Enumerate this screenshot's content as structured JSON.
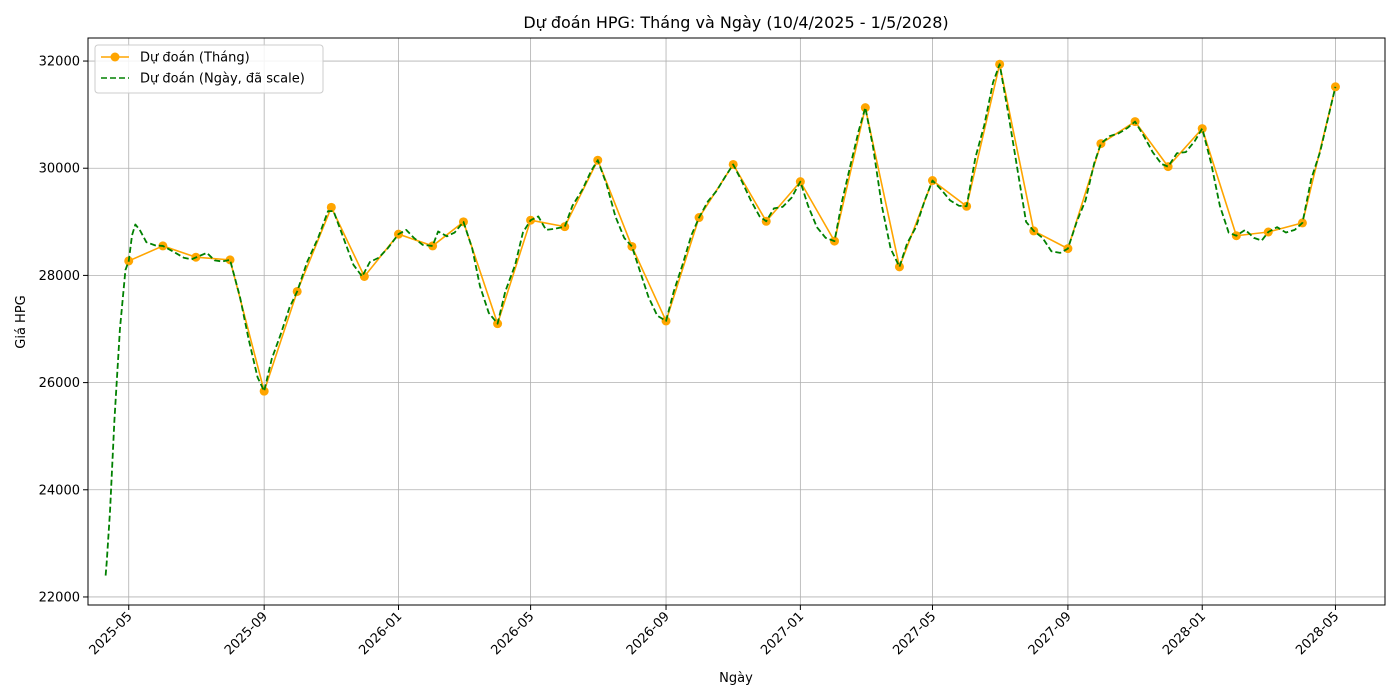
{
  "chart_data": {
    "type": "line",
    "title": "Dự đoán HPG: Tháng và Ngày (10/4/2025 - 1/5/2028)",
    "xlabel": "Ngày",
    "ylabel": "Giá HPG",
    "xlim": [
      "2025-03-25",
      "2028-06-15"
    ],
    "ylim": [
      21850,
      32430
    ],
    "x_ticks": [
      "2025-05-01",
      "2025-09-01",
      "2026-01-01",
      "2026-05-01",
      "2026-09-01",
      "2027-01-01",
      "2027-05-01",
      "2027-09-01",
      "2028-01-01",
      "2028-05-01"
    ],
    "x_tick_labels": [
      "2025-05",
      "2025-09",
      "2026-01",
      "2026-05",
      "2026-09",
      "2027-01",
      "2027-05",
      "2027-09",
      "2028-01",
      "2028-05"
    ],
    "y_ticks": [
      22000,
      24000,
      26000,
      28000,
      30000,
      32000
    ],
    "y_tick_labels": [
      "22000",
      "24000",
      "26000",
      "28000",
      "30000",
      "32000"
    ],
    "grid": true,
    "legend_position": "top-left",
    "series": [
      {
        "name": "Dự đoán (Tháng)",
        "style": "solid-with-markers",
        "color": "#ffa500",
        "points": [
          [
            "2025-05-01",
            28270
          ],
          [
            "2025-06-01",
            28550
          ],
          [
            "2025-07-01",
            28340
          ],
          [
            "2025-08-01",
            28290
          ],
          [
            "2025-09-01",
            25840
          ],
          [
            "2025-10-01",
            27700
          ],
          [
            "2025-11-01",
            29270
          ],
          [
            "2025-12-01",
            27980
          ],
          [
            "2026-01-01",
            28770
          ],
          [
            "2026-02-01",
            28550
          ],
          [
            "2026-03-01",
            29000
          ],
          [
            "2026-04-01",
            27100
          ],
          [
            "2026-05-01",
            29030
          ],
          [
            "2026-06-01",
            28910
          ],
          [
            "2026-07-01",
            30150
          ],
          [
            "2026-08-01",
            28540
          ],
          [
            "2026-09-01",
            27150
          ],
          [
            "2026-10-01",
            29080
          ],
          [
            "2026-11-01",
            30070
          ],
          [
            "2026-12-01",
            29010
          ],
          [
            "2027-01-01",
            29750
          ],
          [
            "2027-02-01",
            28640
          ],
          [
            "2027-03-01",
            31130
          ],
          [
            "2027-04-01",
            28160
          ],
          [
            "2027-05-01",
            29770
          ],
          [
            "2027-06-01",
            29290
          ],
          [
            "2027-07-01",
            31940
          ],
          [
            "2027-08-01",
            28830
          ],
          [
            "2027-09-01",
            28500
          ],
          [
            "2027-10-01",
            30460
          ],
          [
            "2027-11-01",
            30870
          ],
          [
            "2027-12-01",
            30030
          ],
          [
            "2028-01-01",
            30740
          ],
          [
            "2028-02-01",
            28740
          ],
          [
            "2028-03-01",
            28810
          ],
          [
            "2028-04-01",
            28980
          ],
          [
            "2028-05-01",
            31520
          ]
        ]
      },
      {
        "name": "Dự đoán (Ngày, đã scale)",
        "style": "dashed",
        "color": "#008000",
        "points": [
          [
            "2025-04-10",
            22400
          ],
          [
            "2025-04-11",
            22650
          ],
          [
            "2025-04-14",
            23600
          ],
          [
            "2025-04-18",
            25300
          ],
          [
            "2025-04-23",
            27000
          ],
          [
            "2025-04-28",
            28100
          ],
          [
            "2025-05-01",
            28270
          ],
          [
            "2025-05-04",
            28750
          ],
          [
            "2025-05-07",
            28950
          ],
          [
            "2025-05-11",
            28850
          ],
          [
            "2025-05-17",
            28620
          ],
          [
            "2025-05-25",
            28560
          ],
          [
            "2025-06-01",
            28550
          ],
          [
            "2025-06-10",
            28450
          ],
          [
            "2025-06-20",
            28330
          ],
          [
            "2025-06-27",
            28300
          ],
          [
            "2025-07-05",
            28370
          ],
          [
            "2025-07-11",
            28420
          ],
          [
            "2025-07-18",
            28280
          ],
          [
            "2025-07-25",
            28260
          ],
          [
            "2025-08-01",
            28290
          ],
          [
            "2025-08-10",
            27600
          ],
          [
            "2025-08-18",
            26800
          ],
          [
            "2025-08-26",
            26100
          ],
          [
            "2025-09-01",
            25840
          ],
          [
            "2025-09-08",
            26450
          ],
          [
            "2025-09-16",
            26900
          ],
          [
            "2025-09-24",
            27400
          ],
          [
            "2025-10-01",
            27700
          ],
          [
            "2025-10-10",
            28250
          ],
          [
            "2025-10-20",
            28700
          ],
          [
            "2025-10-29",
            29200
          ],
          [
            "2025-11-03",
            29200
          ],
          [
            "2025-11-12",
            28700
          ],
          [
            "2025-11-21",
            28200
          ],
          [
            "2025-11-29",
            27980
          ],
          [
            "2025-12-06",
            28250
          ],
          [
            "2025-12-14",
            28330
          ],
          [
            "2025-12-22",
            28500
          ],
          [
            "2026-01-01",
            28770
          ],
          [
            "2026-01-08",
            28850
          ],
          [
            "2026-01-15",
            28700
          ],
          [
            "2026-01-23",
            28570
          ],
          [
            "2026-02-01",
            28550
          ],
          [
            "2026-02-06",
            28820
          ],
          [
            "2026-02-14",
            28730
          ],
          [
            "2026-02-21",
            28800
          ],
          [
            "2026-03-01",
            29000
          ],
          [
            "2026-03-09",
            28500
          ],
          [
            "2026-03-16",
            27800
          ],
          [
            "2026-03-24",
            27300
          ],
          [
            "2026-04-01",
            27100
          ],
          [
            "2026-04-08",
            27700
          ],
          [
            "2026-04-17",
            28200
          ],
          [
            "2026-04-24",
            28800
          ],
          [
            "2026-05-01",
            29030
          ],
          [
            "2026-05-08",
            29100
          ],
          [
            "2026-05-15",
            28850
          ],
          [
            "2026-05-23",
            28870
          ],
          [
            "2026-06-01",
            28910
          ],
          [
            "2026-06-08",
            29300
          ],
          [
            "2026-06-17",
            29600
          ],
          [
            "2026-06-25",
            29950
          ],
          [
            "2026-07-01",
            30150
          ],
          [
            "2026-07-09",
            29700
          ],
          [
            "2026-07-17",
            29100
          ],
          [
            "2026-07-25",
            28700
          ],
          [
            "2026-08-01",
            28540
          ],
          [
            "2026-08-08",
            28100
          ],
          [
            "2026-08-16",
            27600
          ],
          [
            "2026-08-24",
            27250
          ],
          [
            "2026-09-01",
            27150
          ],
          [
            "2026-09-08",
            27700
          ],
          [
            "2026-09-16",
            28200
          ],
          [
            "2026-09-24",
            28750
          ],
          [
            "2026-10-01",
            29080
          ],
          [
            "2026-10-09",
            29380
          ],
          [
            "2026-10-17",
            29580
          ],
          [
            "2026-10-25",
            29850
          ],
          [
            "2026-11-01",
            30070
          ],
          [
            "2026-11-09",
            29750
          ],
          [
            "2026-11-17",
            29400
          ],
          [
            "2026-11-25",
            29100
          ],
          [
            "2026-12-01",
            29010
          ],
          [
            "2026-12-08",
            29250
          ],
          [
            "2026-12-16",
            29280
          ],
          [
            "2026-12-24",
            29450
          ],
          [
            "2027-01-01",
            29750
          ],
          [
            "2027-01-08",
            29300
          ],
          [
            "2027-01-16",
            28900
          ],
          [
            "2027-01-24",
            28700
          ],
          [
            "2027-02-01",
            28640
          ],
          [
            "2027-02-08",
            29400
          ],
          [
            "2027-02-16",
            30100
          ],
          [
            "2027-02-23",
            30700
          ],
          [
            "2027-03-01",
            31130
          ],
          [
            "2027-03-08",
            30400
          ],
          [
            "2027-03-16",
            29300
          ],
          [
            "2027-03-24",
            28500
          ],
          [
            "2027-04-01",
            28160
          ],
          [
            "2027-04-08",
            28600
          ],
          [
            "2027-04-16",
            28900
          ],
          [
            "2027-04-24",
            29400
          ],
          [
            "2027-05-01",
            29770
          ],
          [
            "2027-05-09",
            29600
          ],
          [
            "2027-05-17",
            29400
          ],
          [
            "2027-05-25",
            29300
          ],
          [
            "2027-06-01",
            29290
          ],
          [
            "2027-06-09",
            30200
          ],
          [
            "2027-06-17",
            30800
          ],
          [
            "2027-06-25",
            31600
          ],
          [
            "2027-07-01",
            31940
          ],
          [
            "2027-07-09",
            31000
          ],
          [
            "2027-07-17",
            30000
          ],
          [
            "2027-07-25",
            29000
          ],
          [
            "2027-08-01",
            28830
          ],
          [
            "2027-08-09",
            28700
          ],
          [
            "2027-08-17",
            28450
          ],
          [
            "2027-08-25",
            28420
          ],
          [
            "2027-09-01",
            28500
          ],
          [
            "2027-09-09",
            29000
          ],
          [
            "2027-09-17",
            29400
          ],
          [
            "2027-09-25",
            30100
          ],
          [
            "2027-10-01",
            30460
          ],
          [
            "2027-10-09",
            30600
          ],
          [
            "2027-10-17",
            30650
          ],
          [
            "2027-10-25",
            30750
          ],
          [
            "2027-11-01",
            30870
          ],
          [
            "2027-11-09",
            30600
          ],
          [
            "2027-11-17",
            30300
          ],
          [
            "2027-11-25",
            30080
          ],
          [
            "2027-12-01",
            30030
          ],
          [
            "2027-12-09",
            30280
          ],
          [
            "2027-12-17",
            30300
          ],
          [
            "2027-12-25",
            30500
          ],
          [
            "2028-01-01",
            30740
          ],
          [
            "2028-01-09",
            30100
          ],
          [
            "2028-01-17",
            29300
          ],
          [
            "2028-01-25",
            28800
          ],
          [
            "2028-02-01",
            28740
          ],
          [
            "2028-02-09",
            28850
          ],
          [
            "2028-02-17",
            28700
          ],
          [
            "2028-02-24",
            28650
          ],
          [
            "2028-03-01",
            28810
          ],
          [
            "2028-03-09",
            28900
          ],
          [
            "2028-03-17",
            28800
          ],
          [
            "2028-03-25",
            28850
          ],
          [
            "2028-04-01",
            28980
          ],
          [
            "2028-04-09",
            29800
          ],
          [
            "2028-04-17",
            30300
          ],
          [
            "2028-04-25",
            31000
          ],
          [
            "2028-05-01",
            31520
          ]
        ]
      }
    ]
  }
}
